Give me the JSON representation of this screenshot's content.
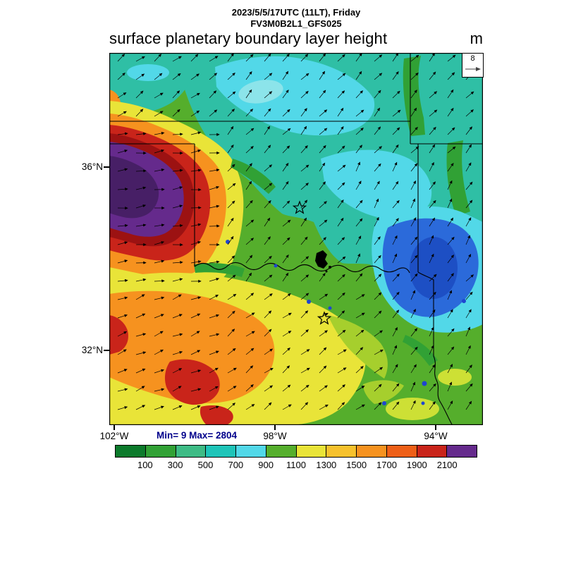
{
  "header": {
    "datetime_line": "2023/5/5/17UTC (11LT), Friday",
    "model_line": "FV3M0B2L1_GFS025",
    "plot_title": "surface planetary boundary layer height",
    "units": "m"
  },
  "wind_reference": {
    "value": "8"
  },
  "axes": {
    "lat_ticks": [
      "36°N",
      "32°N"
    ],
    "lon_ticks": [
      "102°W",
      "98°W",
      "94°W"
    ]
  },
  "stats": {
    "min_max": "Min= 9 Max= 2804"
  },
  "chart_data": {
    "type": "heatmap",
    "title": "surface planetary boundary layer height",
    "units": "m",
    "model_run": "FV3M0B2L1_GFS025",
    "valid_time": "2023/5/5/17UTC (11LT), Friday",
    "field_min": 9,
    "field_max": 2804,
    "wind_reference_m_s": 8,
    "lat_ticks": [
      "36°N",
      "32°N"
    ],
    "lon_ticks": [
      "102°W",
      "98°W",
      "94°W"
    ],
    "overlays": {
      "wind_vectors": true,
      "star_markers": 2,
      "state_borders": true
    },
    "colorbar": {
      "levels": [
        100,
        300,
        500,
        700,
        900,
        1100,
        1300,
        1500,
        1700,
        1900,
        2100
      ],
      "colors": [
        "#0c7a2b",
        "#31a135",
        "#3dbb85",
        "#1ec4b8",
        "#52d8e8",
        "#55ae2c",
        "#e9e438",
        "#f6c12c",
        "#f6921f",
        "#ee5f17",
        "#c9241a",
        "#652a8c"
      ]
    }
  }
}
